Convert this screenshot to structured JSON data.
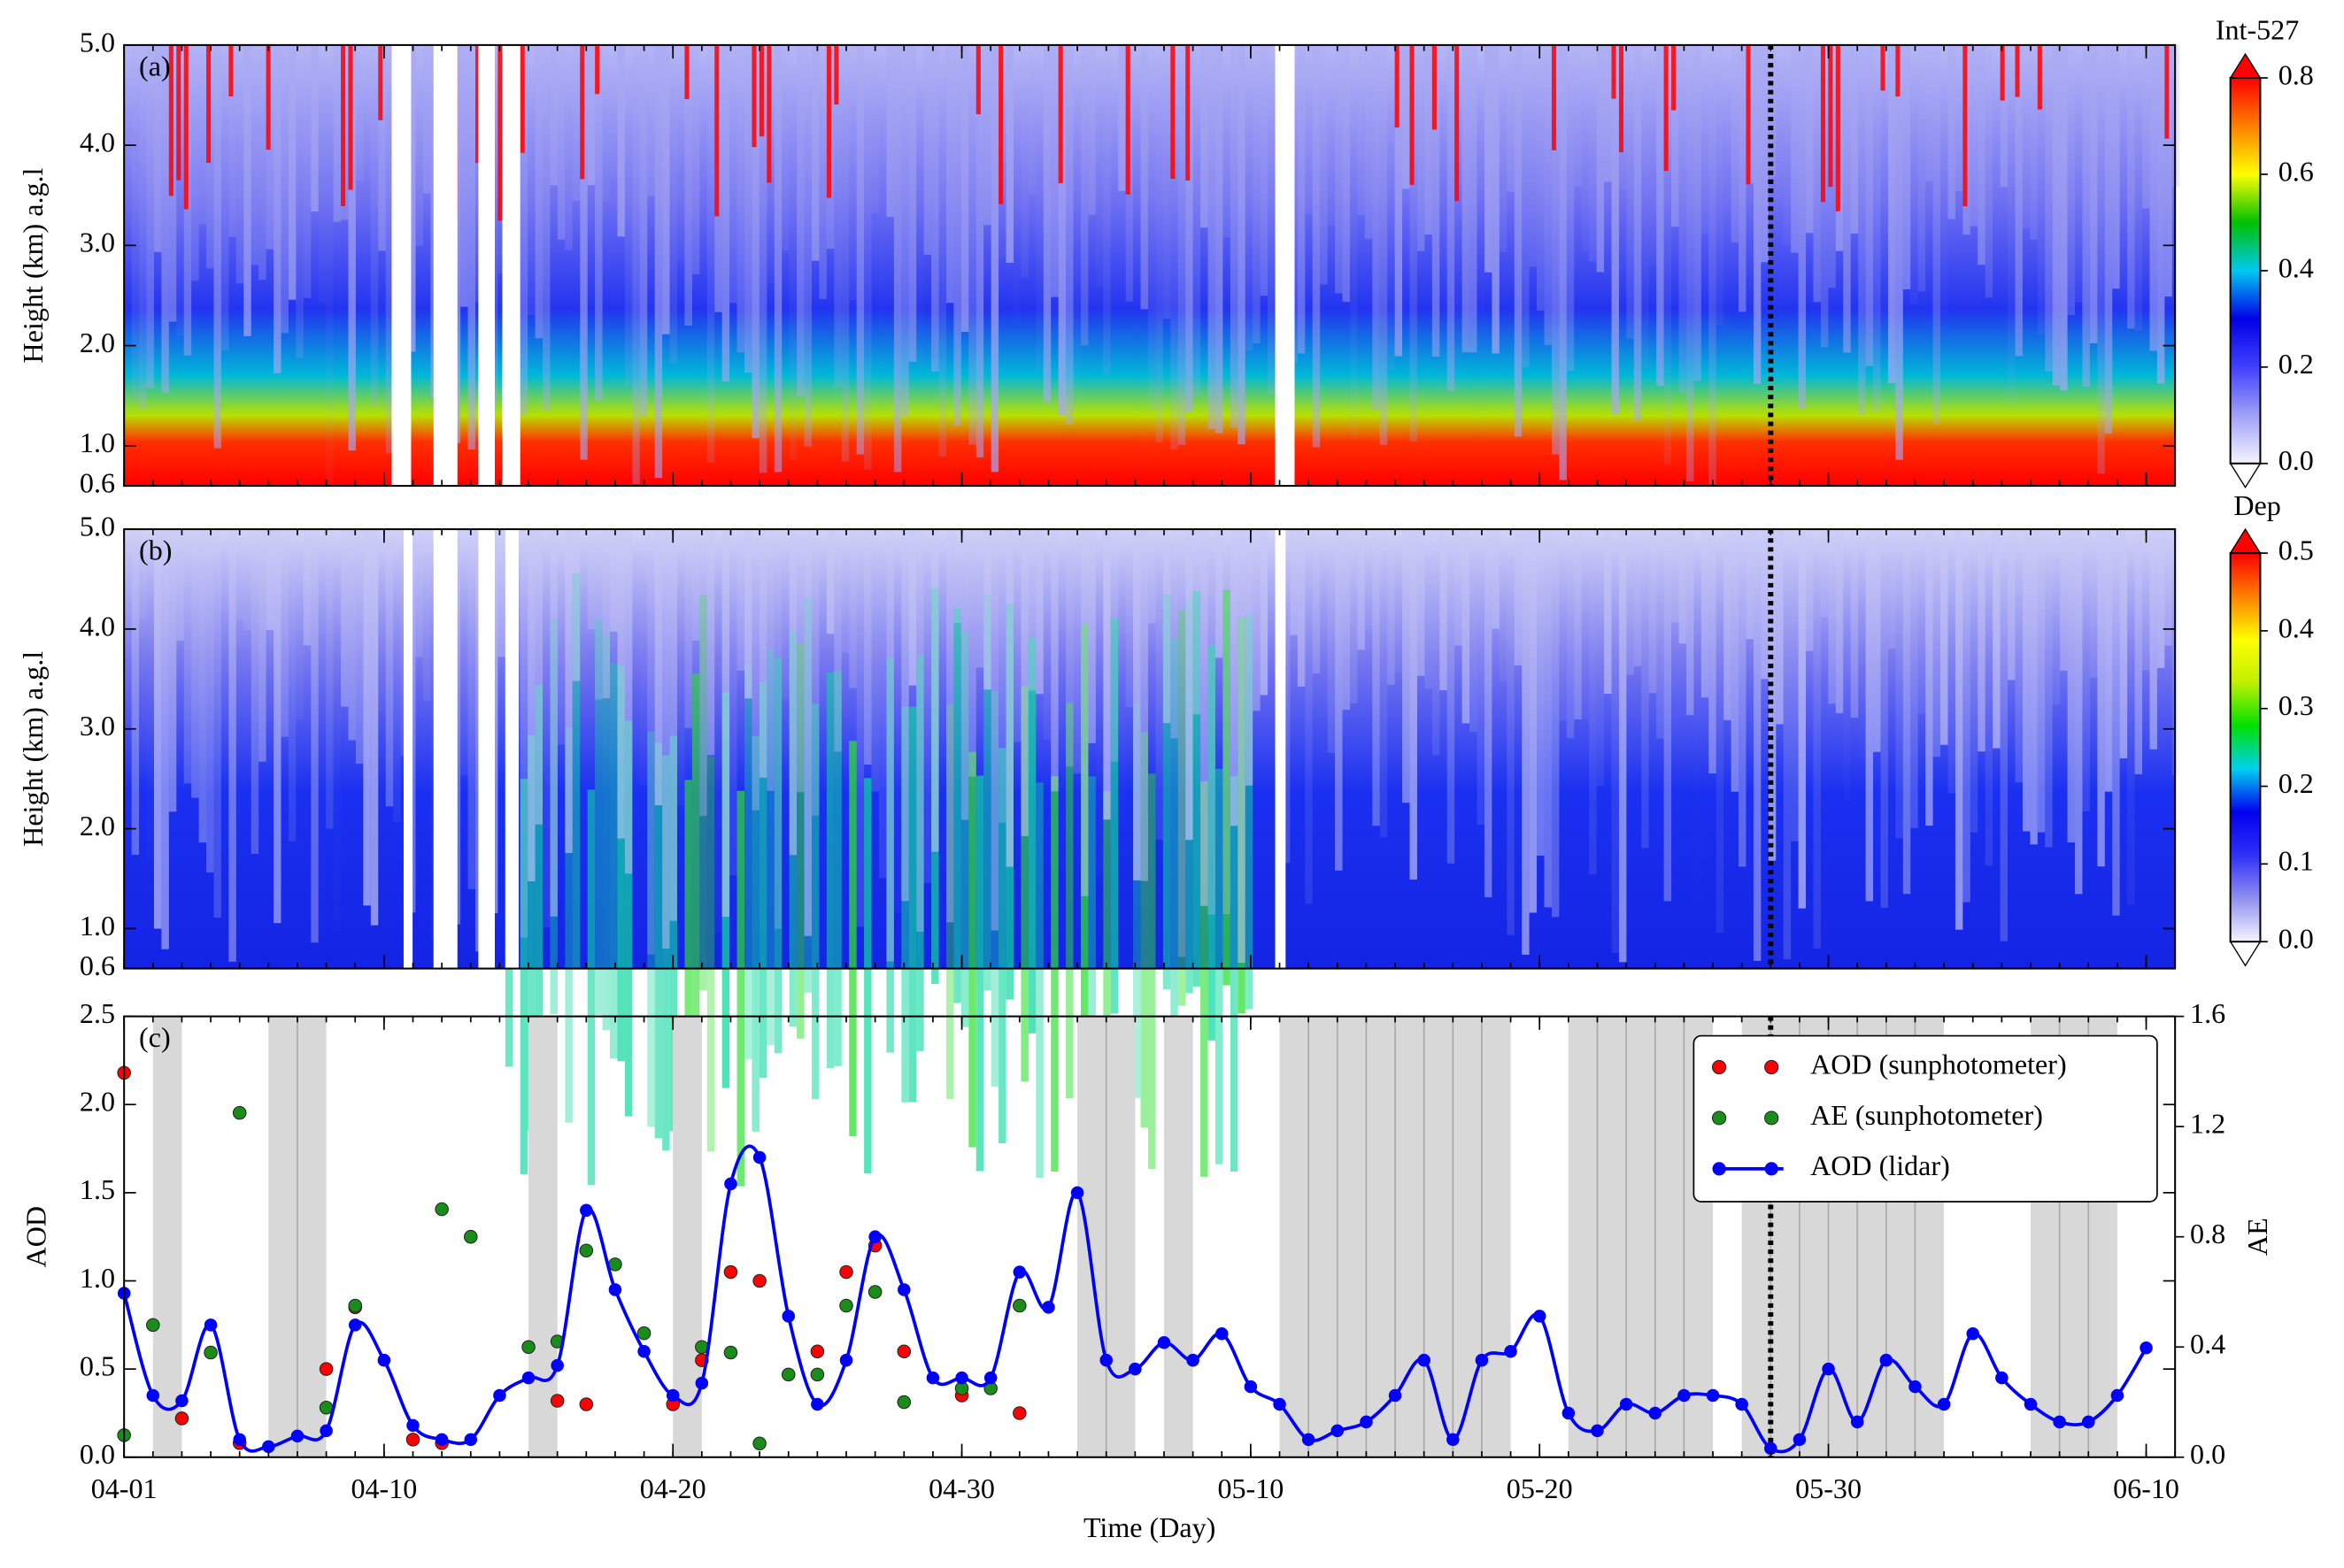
{
  "chart_data": [
    {
      "type": "heatmap",
      "panel_label": "(a)",
      "ylabel": "Height (km) a.g.l",
      "xlim": [
        "04-01",
        "06-11"
      ],
      "ylim": [
        0.6,
        5.0
      ],
      "yticks": [
        0.6,
        {
          "value": 1.0,
          "label": "1.0"
        },
        {
          "value": 2.0,
          "label": "2.0"
        },
        {
          "value": 3.0,
          "label": "3.0"
        },
        {
          "value": 4.0,
          "label": "4.0"
        },
        {
          "value": 5.0,
          "label": "5.0"
        }
      ],
      "vline": "05-28",
      "colorbar": {
        "title": "Int-527",
        "lim": [
          0,
          0.8
        ],
        "ticks": [
          {
            "value": 0,
            "label": "0.0"
          },
          0.2,
          0.4,
          0.6,
          0.8
        ],
        "colors": [
          "#f4f4ff",
          "#a0a0f8",
          "#4040ff",
          "#0000e8",
          "#00c8f0",
          "#00c000",
          "#ffff00",
          "#ff8000",
          "#ff0000"
        ]
      }
    },
    {
      "type": "heatmap",
      "panel_label": "(b)",
      "ylabel": "Height (km) a.g.l",
      "xlim": [
        "04-01",
        "06-11"
      ],
      "ylim": [
        0.6,
        5.0
      ],
      "yticks": [
        0.6,
        {
          "value": 1.0,
          "label": "1.0"
        },
        {
          "value": 2.0,
          "label": "2.0"
        },
        {
          "value": 3.0,
          "label": "3.0"
        },
        {
          "value": 4.0,
          "label": "4.0"
        },
        {
          "value": 5.0,
          "label": "5.0"
        }
      ],
      "vline": "05-28",
      "colorbar": {
        "title": "Dep",
        "lim": [
          0,
          0.5
        ],
        "ticks": [
          {
            "value": 0,
            "label": "0.0"
          },
          0.1,
          0.2,
          0.3,
          0.4,
          0.5
        ],
        "colors": [
          "#f4f4ff",
          "#9090f0",
          "#3030f8",
          "#0000f0",
          "#00d0f0",
          "#00e000",
          "#c0f000",
          "#ffff00",
          "#ff8000",
          "#ff0000"
        ]
      }
    },
    {
      "type": "line",
      "panel_label": "(c)",
      "xlabel": "Time (Day)",
      "ylabel": "AOD",
      "y2label": "AE",
      "ylabel_color": "#ff0000",
      "y2label_color": "#118811",
      "xlim": [
        "04-01",
        "06-11"
      ],
      "xticks": [
        "04-01",
        "04-10",
        "04-20",
        "04-30",
        "05-10",
        "05-20",
        "05-30",
        "06-10"
      ],
      "ylim": [
        0,
        2.5
      ],
      "yticks": [
        {
          "value": 0,
          "label": "0.0"
        },
        0.5,
        {
          "value": 1.0,
          "label": "1.0"
        },
        1.5,
        {
          "value": 2.0,
          "label": "2.0"
        },
        2.5
      ],
      "y2lim": [
        0,
        1.6
      ],
      "y2ticks": [
        {
          "value": 0,
          "label": "0.0"
        },
        0.4,
        0.8,
        1.2,
        1.6
      ],
      "legend": "upper right",
      "vline": "05-28",
      "shaded": [
        [
          "04-02",
          "04-03"
        ],
        [
          "04-06",
          "04-08"
        ],
        [
          "04-15",
          "04-16"
        ],
        [
          "04-20",
          "04-21"
        ],
        [
          "05-04",
          "05-06"
        ],
        [
          "05-07",
          "05-08"
        ],
        [
          "05-11",
          "05-19"
        ],
        [
          "05-21",
          "05-26"
        ],
        [
          "05-27",
          "06-03"
        ],
        [
          "06-06",
          "06-09"
        ]
      ],
      "series": [
        {
          "name": "AOD (sunphotometer)",
          "color": "#ff0000",
          "style": "markers",
          "x": [
            "04-01",
            "04-03",
            "04-05",
            "04-08",
            "04-09",
            "04-11",
            "04-12",
            "04-16",
            "04-17",
            "04-20",
            "04-21",
            "04-22",
            "04-23",
            "04-25",
            "04-26",
            "04-27",
            "04-28",
            "04-30",
            "05-02"
          ],
          "values": [
            2.18,
            0.22,
            0.08,
            0.5,
            0.85,
            0.1,
            0.08,
            0.32,
            0.3,
            0.3,
            0.55,
            1.05,
            1.0,
            0.6,
            1.05,
            1.2,
            0.6,
            0.35,
            0.25
          ]
        },
        {
          "name": "AE (sunphotometer)",
          "color": "#1a8c1a",
          "style": "markers",
          "axis": "y2",
          "x": [
            "04-01",
            "04-02",
            "04-04",
            "04-05",
            "04-08",
            "04-09",
            "04-12",
            "04-13",
            "04-15",
            "04-16",
            "04-17",
            "04-18",
            "04-19",
            "04-21",
            "04-22",
            "04-23",
            "04-24",
            "04-25",
            "04-26",
            "04-27",
            "04-28",
            "04-30",
            "05-01",
            "05-02"
          ],
          "values": [
            0.08,
            0.48,
            0.38,
            1.25,
            0.18,
            0.55,
            0.9,
            0.8,
            0.4,
            0.42,
            0.75,
            0.7,
            0.45,
            0.4,
            0.38,
            0.05,
            0.3,
            0.3,
            0.55,
            0.6,
            0.2,
            0.25,
            0.25,
            0.55
          ]
        },
        {
          "name": "AOD (lidar)",
          "color": "#0000ff",
          "style": "line+markers",
          "x": [
            "04-01",
            "04-02",
            "04-03",
            "04-04",
            "04-05",
            "04-06",
            "04-07",
            "04-08",
            "04-09",
            "04-10",
            "04-11",
            "04-12",
            "04-13",
            "04-14",
            "04-15",
            "04-16",
            "04-17",
            "04-18",
            "04-19",
            "04-20",
            "04-21",
            "04-22",
            "04-23",
            "04-24",
            "04-25",
            "04-26",
            "04-27",
            "04-28",
            "04-29",
            "04-30",
            "05-01",
            "05-02",
            "05-03",
            "05-04",
            "05-05",
            "05-06",
            "05-07",
            "05-08",
            "05-09",
            "05-10",
            "05-11",
            "05-12",
            "05-13",
            "05-14",
            "05-15",
            "05-16",
            "05-17",
            "05-18",
            "05-19",
            "05-20",
            "05-21",
            "05-22",
            "05-23",
            "05-24",
            "05-25",
            "05-26",
            "05-27",
            "05-28",
            "05-29",
            "05-30",
            "05-31",
            "06-01",
            "06-02",
            "06-03",
            "06-04",
            "06-05",
            "06-06",
            "06-07",
            "06-08",
            "06-09",
            "06-10"
          ],
          "values": [
            0.93,
            0.35,
            0.32,
            0.75,
            0.1,
            0.06,
            0.12,
            0.15,
            0.75,
            0.55,
            0.18,
            0.1,
            0.1,
            0.35,
            0.45,
            0.52,
            1.4,
            0.95,
            0.6,
            0.35,
            0.42,
            1.55,
            1.7,
            0.8,
            0.3,
            0.55,
            1.25,
            0.95,
            0.45,
            0.45,
            0.45,
            1.05,
            0.85,
            1.5,
            0.55,
            0.5,
            0.65,
            0.55,
            0.7,
            0.4,
            0.3,
            0.1,
            0.15,
            0.2,
            0.35,
            0.55,
            0.1,
            0.55,
            0.6,
            0.8,
            0.25,
            0.15,
            0.3,
            0.25,
            0.35,
            0.35,
            0.3,
            0.05,
            0.1,
            0.5,
            0.2,
            0.55,
            0.4,
            0.3,
            0.7,
            0.45,
            0.3,
            0.2,
            0.2,
            0.35,
            0.62
          ]
        }
      ]
    }
  ]
}
